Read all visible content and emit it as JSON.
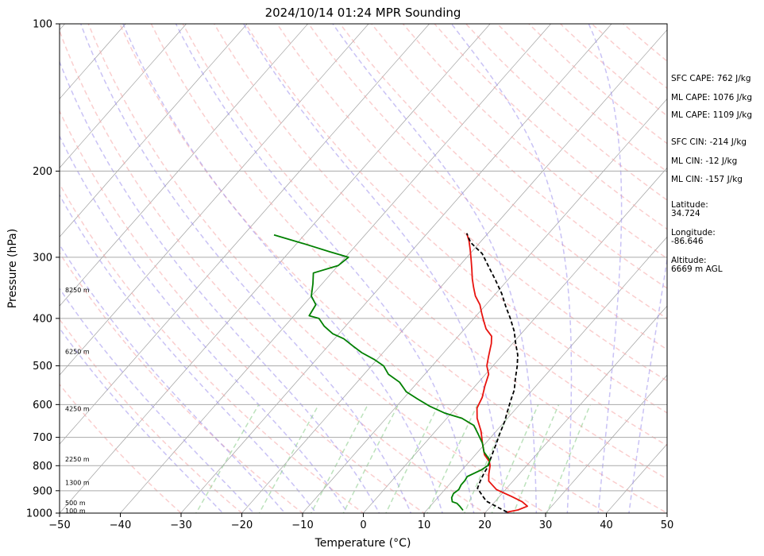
{
  "chart_data": {
    "type": "line",
    "title": "2024/10/14 01:24 MPR Sounding",
    "xlabel": "Temperature (°C)",
    "ylabel": "Pressure (hPa)",
    "xlim": [
      -50,
      50
    ],
    "ylim": [
      1000,
      100
    ],
    "y_scale": "log",
    "x_ticks": [
      -50,
      -40,
      -30,
      -20,
      -10,
      0,
      10,
      20,
      30,
      40,
      50
    ],
    "y_ticks": [
      1000,
      900,
      800,
      700,
      600,
      500,
      400,
      300,
      200,
      100
    ],
    "grid": "horizontal isobars",
    "height_labels": [
      {
        "label": "100 m",
        "pressure": 988
      },
      {
        "label": "500 m",
        "pressure": 952
      },
      {
        "label": "1300 m",
        "pressure": 866
      },
      {
        "label": "2250 m",
        "pressure": 775
      },
      {
        "label": "4250 m",
        "pressure": 612
      },
      {
        "label": "6250 m",
        "pressure": 467
      },
      {
        "label": "8250 m",
        "pressure": 350
      }
    ],
    "series": [
      {
        "color": "#e8130f",
        "style": "solid",
        "points": [
          [
            23.5,
            995
          ],
          [
            25,
            985
          ],
          [
            26,
            968
          ],
          [
            24.5,
            948
          ],
          [
            22,
            925
          ],
          [
            18.5,
            895
          ],
          [
            16,
            860
          ],
          [
            15,
            832
          ],
          [
            14,
            800
          ],
          [
            13.3,
            785
          ],
          [
            11.5,
            760
          ],
          [
            9.5,
            720
          ],
          [
            7.5,
            680
          ],
          [
            5,
            640
          ],
          [
            3.5,
            610
          ],
          [
            2.8,
            580
          ],
          [
            1.6,
            550
          ],
          [
            0.5,
            520
          ],
          [
            -1,
            500
          ],
          [
            -2,
            480
          ],
          [
            -3,
            460
          ],
          [
            -3.5,
            450
          ],
          [
            -4.5,
            435
          ],
          [
            -6.5,
            420
          ],
          [
            -8,
            405
          ],
          [
            -9.5,
            390
          ],
          [
            -11,
            375
          ],
          [
            -13,
            360
          ],
          [
            -14.5,
            346
          ],
          [
            -16,
            332
          ],
          [
            -17.5,
            317
          ],
          [
            -19,
            303
          ],
          [
            -20.5,
            290
          ],
          [
            -22,
            278
          ],
          [
            -23.5,
            268
          ]
        ]
      },
      {
        "color": "#000000",
        "style": "dashed",
        "points": [
          [
            23.5,
            995
          ],
          [
            21,
            970
          ],
          [
            18.5,
            945
          ],
          [
            17,
            920
          ],
          [
            15.2,
            890
          ],
          [
            14.6,
            860
          ],
          [
            14.1,
            830
          ],
          [
            13.8,
            805
          ],
          [
            13.2,
            780
          ],
          [
            12.5,
            750
          ],
          [
            11.8,
            720
          ],
          [
            11,
            690
          ],
          [
            10,
            650
          ],
          [
            9,
            620
          ],
          [
            8,
            590
          ],
          [
            7,
            560
          ],
          [
            5.5,
            530
          ],
          [
            4,
            500
          ],
          [
            2.5,
            475
          ],
          [
            0.5,
            450
          ],
          [
            -1.5,
            425
          ],
          [
            -4,
            400
          ],
          [
            -6.5,
            378
          ],
          [
            -9,
            356
          ],
          [
            -12,
            334
          ],
          [
            -15,
            314
          ],
          [
            -18,
            295
          ],
          [
            -21.5,
            280
          ],
          [
            -23.5,
            268
          ]
        ]
      },
      {
        "color": "#008000",
        "style": "solid",
        "points": [
          [
            16,
            987
          ],
          [
            15,
            970
          ],
          [
            14,
            955
          ],
          [
            13,
            948
          ],
          [
            12.3,
            930
          ],
          [
            12,
            912
          ],
          [
            12.3,
            895
          ],
          [
            12,
            875
          ],
          [
            12,
            858
          ],
          [
            11.8,
            842
          ],
          [
            13.2,
            815
          ],
          [
            13.6,
            800
          ],
          [
            13.2,
            780
          ],
          [
            11,
            750
          ],
          [
            9.5,
            720
          ],
          [
            7.5,
            690
          ],
          [
            5.5,
            662
          ],
          [
            2.5,
            640
          ],
          [
            -1,
            625
          ],
          [
            -4.5,
            605
          ],
          [
            -7.5,
            585
          ],
          [
            -10.5,
            565
          ],
          [
            -13,
            540
          ],
          [
            -16,
            520
          ],
          [
            -18,
            500
          ],
          [
            -20.5,
            485
          ],
          [
            -23.5,
            470
          ],
          [
            -26,
            455
          ],
          [
            -28.5,
            440
          ],
          [
            -31,
            430
          ],
          [
            -33.5,
            415
          ],
          [
            -35.5,
            400
          ],
          [
            -37.5,
            395
          ],
          [
            -38,
            375
          ],
          [
            -40,
            360
          ],
          [
            -41.5,
            340
          ],
          [
            -43,
            323
          ],
          [
            -40,
            312
          ],
          [
            -39.5,
            300
          ],
          [
            -43.5,
            292
          ],
          [
            -48,
            283
          ],
          [
            -55,
            270
          ]
        ]
      }
    ],
    "stats": [
      "SFC CAPE: 762 J/kg",
      "ML CAPE: 1076 J/kg",
      "ML CAPE: 1109 J/kg",
      "SFC CIN: -214 J/kg",
      "ML CIN: -12 J/kg",
      "ML CIN: -157 J/kg",
      "Latitude:\n34.724",
      "Longitude:\n-86.646",
      "Altitude:\n6669 m AGL"
    ],
    "colors": {
      "dry_adiabats": "#f5a6a6",
      "moist_adiabats": "#9d8fec",
      "mixing_ratio": "#8fcf8f",
      "isotherms": "#888888"
    }
  }
}
